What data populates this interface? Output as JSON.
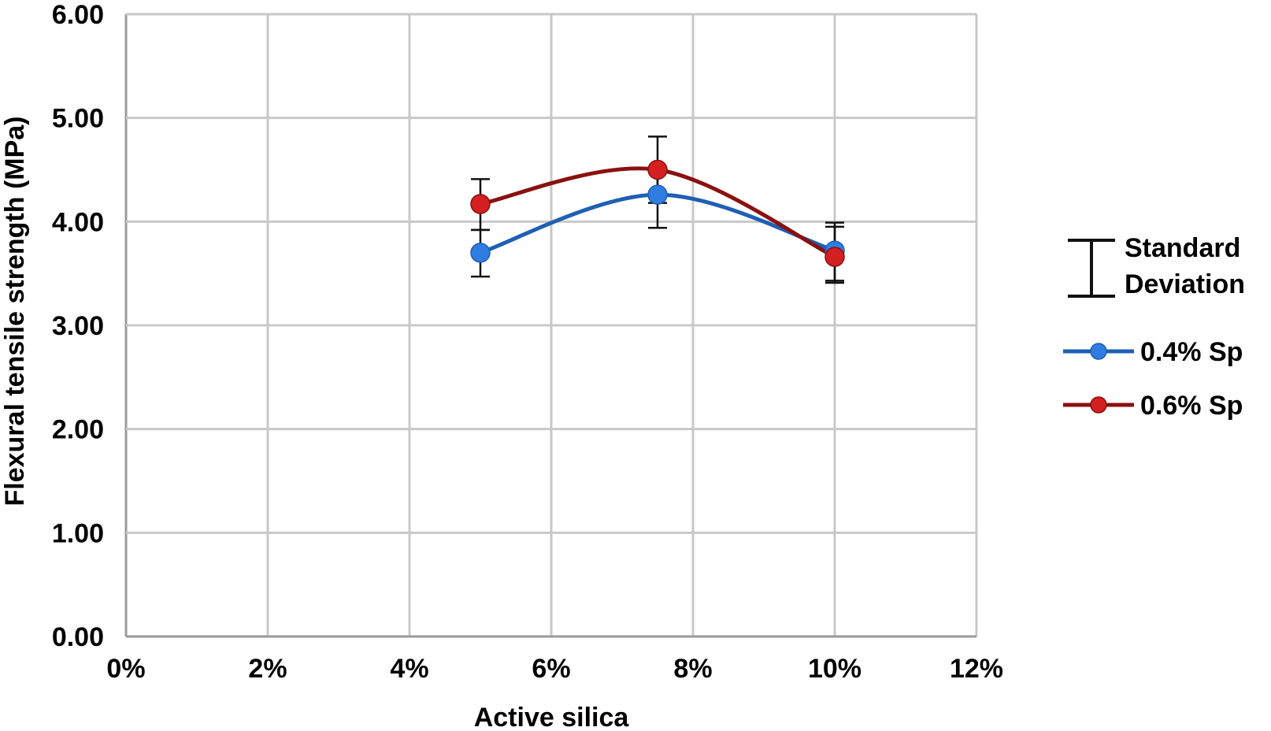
{
  "chart_data": {
    "type": "line",
    "title": "",
    "xlabel": "Active silica",
    "ylabel": "Flexural tensile strength (MPa)",
    "x_ticks": [
      "0%",
      "2%",
      "4%",
      "6%",
      "8%",
      "10%",
      "12%"
    ],
    "y_ticks": [
      "0.00",
      "1.00",
      "2.00",
      "3.00",
      "4.00",
      "5.00",
      "6.00"
    ],
    "xlim": [
      0,
      12
    ],
    "ylim": [
      0,
      6
    ],
    "grid": true,
    "legend_position": "right",
    "legend_error_label": [
      "Standard",
      "Deviation"
    ],
    "x": [
      5,
      7.5,
      10
    ],
    "series": [
      {
        "name": "0.4% Sp",
        "color": "#1f5fb4",
        "marker_color": "#2f7de0",
        "values": [
          3.7,
          4.26,
          3.72
        ],
        "error_low": [
          3.47,
          3.94,
          3.43
        ],
        "error_high": [
          3.92,
          4.52,
          3.99
        ]
      },
      {
        "name": "0.6% Sp",
        "color": "#8b1010",
        "marker_color": "#d42020",
        "values": [
          4.17,
          4.5,
          3.66
        ],
        "error_low": [
          3.92,
          4.18,
          3.41
        ],
        "error_high": [
          4.41,
          4.82,
          3.95
        ]
      }
    ]
  }
}
